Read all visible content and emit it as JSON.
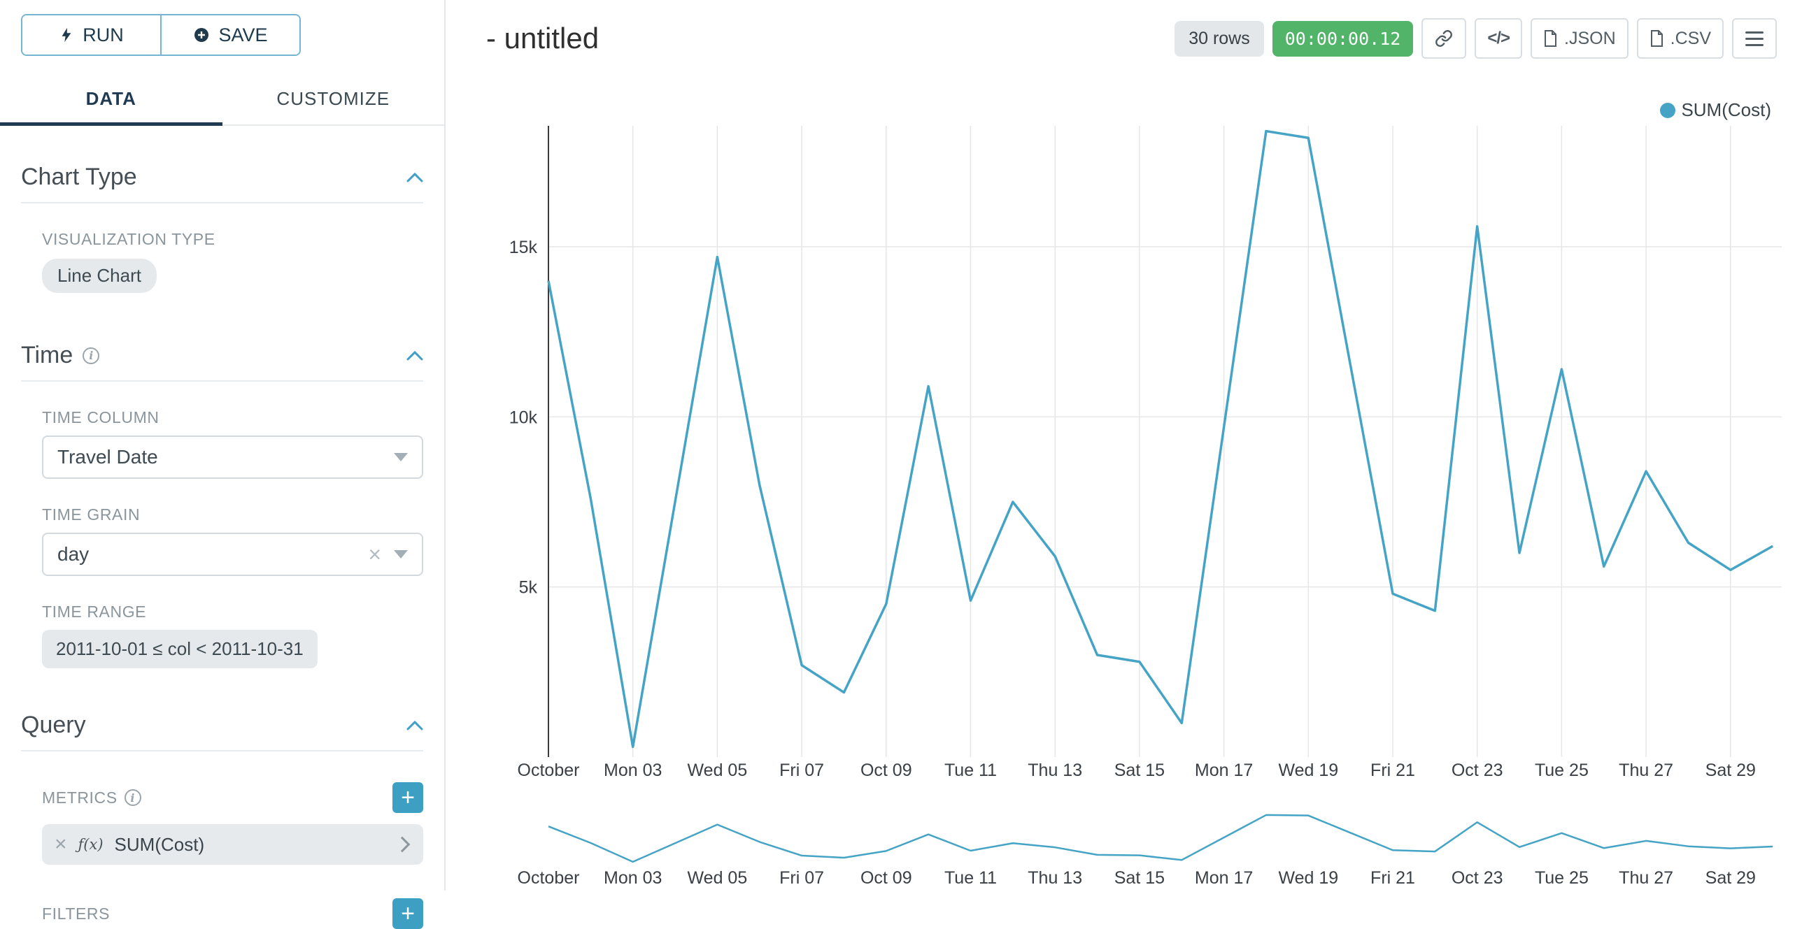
{
  "colors": {
    "line": "#45A4C5",
    "timer_green": "#52B469",
    "add_button": "#3DA0C2",
    "tab_active": "#1F3A52"
  },
  "icons": {
    "run": "lightning-bolt",
    "save": "plus-circle",
    "section_collapse": "chevron-up",
    "info": "info-circle",
    "select_open": "chevron-down",
    "clear": "x",
    "metric_expand": "chevron-right",
    "add": "plus",
    "header_buttons": [
      "link",
      "code",
      "json-file",
      "csv-file",
      "menu"
    ]
  },
  "sidebar": {
    "run_label": "RUN",
    "save_label": "SAVE",
    "tabs": {
      "data": "DATA",
      "customize": "CUSTOMIZE"
    },
    "sections": {
      "chart_type": {
        "title": "Chart Type",
        "viz_type_label": "VISUALIZATION TYPE",
        "viz_type_value": "Line Chart"
      },
      "time": {
        "title": "Time",
        "time_column_label": "TIME COLUMN",
        "time_column_value": "Travel Date",
        "time_grain_label": "TIME GRAIN",
        "time_grain_value": "day",
        "time_range_label": "TIME RANGE",
        "time_range_value": "2011-10-01 ≤ col < 2011-10-31"
      },
      "query": {
        "title": "Query",
        "metrics_label": "METRICS",
        "metric_fx": "ƒ(x)",
        "metric_value": "SUM(Cost)",
        "filters_label": "FILTERS"
      }
    }
  },
  "header": {
    "title": "- untitled",
    "rows_badge": "30 rows",
    "timer_badge": "00:00:00.12",
    "code_icon_label": "</>",
    "json_label": ".JSON",
    "csv_label": ".CSV"
  },
  "legend": {
    "label": "SUM(Cost)"
  },
  "chart_data": {
    "type": "line",
    "title": "",
    "xlabel": "",
    "ylabel": "",
    "ylim": [
      0,
      18600
    ],
    "grid": true,
    "legend_position": "top-right",
    "x_tick_days": [
      1,
      3,
      5,
      7,
      9,
      11,
      13,
      15,
      17,
      19,
      21,
      23,
      25,
      27,
      29
    ],
    "x_tick_labels": [
      "October",
      "Mon 03",
      "Wed 05",
      "Fri 07",
      "Oct 09",
      "Tue 11",
      "Thu 13",
      "Sat 15",
      "Mon 17",
      "Wed 19",
      "Fri 21",
      "Oct 23",
      "Tue 25",
      "Thu 27",
      "Sat 29"
    ],
    "y_tick_values": [
      5000,
      10000,
      15000
    ],
    "y_tick_labels": [
      "5k",
      "10k",
      "15k"
    ],
    "has_mini_context_chart": true,
    "series": [
      {
        "name": "SUM(Cost)",
        "color": "#45A4C5",
        "x": [
          "2011-10-01",
          "2011-10-02",
          "2011-10-03",
          "2011-10-04",
          "2011-10-05",
          "2011-10-06",
          "2011-10-07",
          "2011-10-08",
          "2011-10-09",
          "2011-10-10",
          "2011-10-11",
          "2011-10-12",
          "2011-10-13",
          "2011-10-14",
          "2011-10-15",
          "2011-10-16",
          "2011-10-17",
          "2011-10-18",
          "2011-10-19",
          "2011-10-20",
          "2011-10-21",
          "2011-10-22",
          "2011-10-23",
          "2011-10-24",
          "2011-10-25",
          "2011-10-26",
          "2011-10-27",
          "2011-10-28",
          "2011-10-29",
          "2011-10-30"
        ],
        "values": [
          14000,
          7600,
          300,
          7500,
          14700,
          8000,
          2700,
          1900,
          4500,
          10900,
          4600,
          7500,
          5900,
          3000,
          2800,
          1000,
          9700,
          18400,
          18200,
          11500,
          4800,
          4300,
          15600,
          6000,
          11400,
          5600,
          8400,
          6300,
          5500,
          6200
        ]
      }
    ]
  }
}
